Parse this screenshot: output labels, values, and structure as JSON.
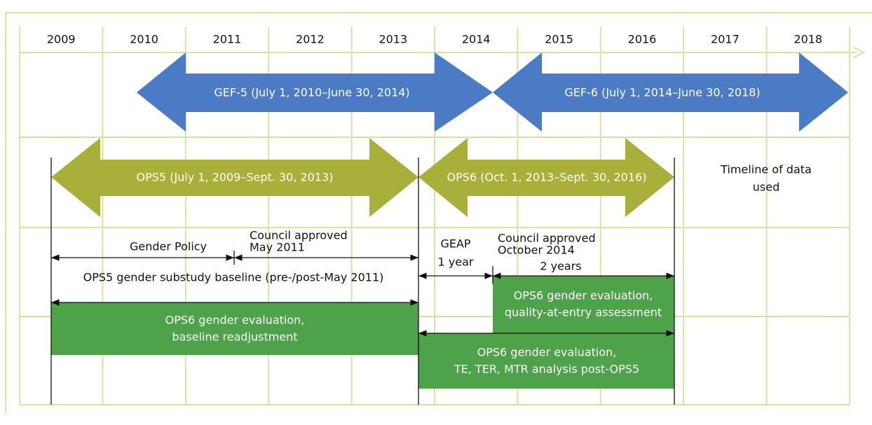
{
  "years": [
    "2009",
    "2010",
    "2011",
    "2012",
    "2013",
    "2014",
    "2015",
    "2016",
    "2017",
    "2018"
  ],
  "gef_arrows": [
    {
      "label": "GEF-5 (July 1, 2010–June 30, 2014)"
    },
    {
      "label": "GEF-6 (July 1, 2014–June 30, 2018)"
    }
  ],
  "ops_arrows": [
    {
      "label": "OPS5 (July 1, 2009–Sept. 30, 2013)"
    },
    {
      "label": "OPS6 (Oct. 1, 2013–Sept. 30, 2016)"
    }
  ],
  "timeline_note": [
    "Timeline of data",
    "used"
  ],
  "annotations": {
    "gender_policy": "Gender Policy",
    "council_2011": [
      "Council approved",
      "May 2011"
    ],
    "substudy": "OPS5 gender substudy baseline (pre-/post-May 2011)",
    "geap": [
      "GEAP",
      "1 year"
    ],
    "council_2014": [
      "Council approved",
      "October 2014"
    ],
    "two_years": "2 years"
  },
  "boxes": [
    {
      "lines": [
        "OPS6 gender evaluation,",
        "baseline readjustment"
      ]
    },
    {
      "lines": [
        "OPS6 gender evaluation,",
        "quality-at-entry assessment"
      ]
    },
    {
      "lines": [
        "OPS6 gender evaluation,",
        "TE, TER, MTR analysis post-OPS5"
      ]
    }
  ]
}
